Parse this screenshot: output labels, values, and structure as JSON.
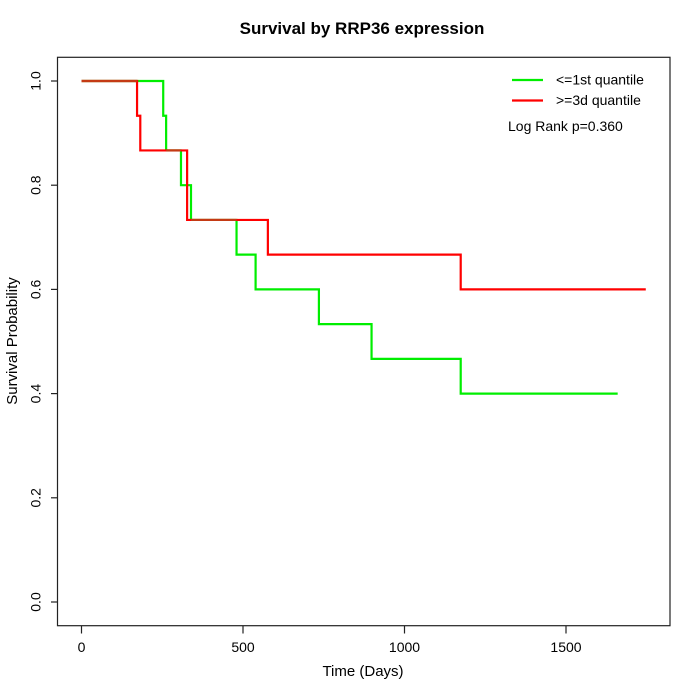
{
  "colors": {
    "green_series": "#00ee00",
    "red_series": "#ff0000",
    "overlap_blend": "#c43a14",
    "axis": "#222222",
    "text": "#000000"
  },
  "chart_data": {
    "type": "line",
    "subtype": "kaplan-meier-step",
    "title": "Survival by RRP36 expression",
    "xlabel": "Time (Days)",
    "ylabel": "Survival Probability",
    "xticks": [
      0,
      500,
      1000,
      1500
    ],
    "yticks": [
      0.0,
      0.2,
      0.4,
      0.6,
      0.8,
      1.0
    ],
    "xlim": [
      -80,
      1830
    ],
    "ylim": [
      -0.05,
      1.04
    ],
    "grid": false,
    "legend_position": "top-right",
    "annotation": "Log Rank p=0.360",
    "series": [
      {
        "name": "<=1st quantile",
        "color": "#00ee00",
        "points": [
          [
            0,
            1.0
          ],
          [
            253,
            1.0
          ],
          [
            253,
            0.9333
          ],
          [
            262,
            0.9333
          ],
          [
            262,
            0.8667
          ],
          [
            308,
            0.8667
          ],
          [
            308,
            0.8
          ],
          [
            339,
            0.8
          ],
          [
            339,
            0.7333
          ],
          [
            480,
            0.7333
          ],
          [
            480,
            0.6667
          ],
          [
            539,
            0.6667
          ],
          [
            539,
            0.6
          ],
          [
            735,
            0.6
          ],
          [
            735,
            0.5333
          ],
          [
            898,
            0.5333
          ],
          [
            898,
            0.4667
          ],
          [
            1174,
            0.4667
          ],
          [
            1174,
            0.4
          ],
          [
            1660,
            0.4
          ]
        ]
      },
      {
        "name": ">=3d quantile",
        "color": "#ff0000",
        "points": [
          [
            0,
            1.0
          ],
          [
            172,
            1.0
          ],
          [
            172,
            0.9333
          ],
          [
            182,
            0.9333
          ],
          [
            182,
            0.8667
          ],
          [
            327,
            0.8667
          ],
          [
            327,
            0.7333
          ],
          [
            577,
            0.7333
          ],
          [
            577,
            0.6667
          ],
          [
            1174,
            0.6667
          ],
          [
            1174,
            0.6
          ],
          [
            1747,
            0.6
          ]
        ]
      }
    ]
  }
}
